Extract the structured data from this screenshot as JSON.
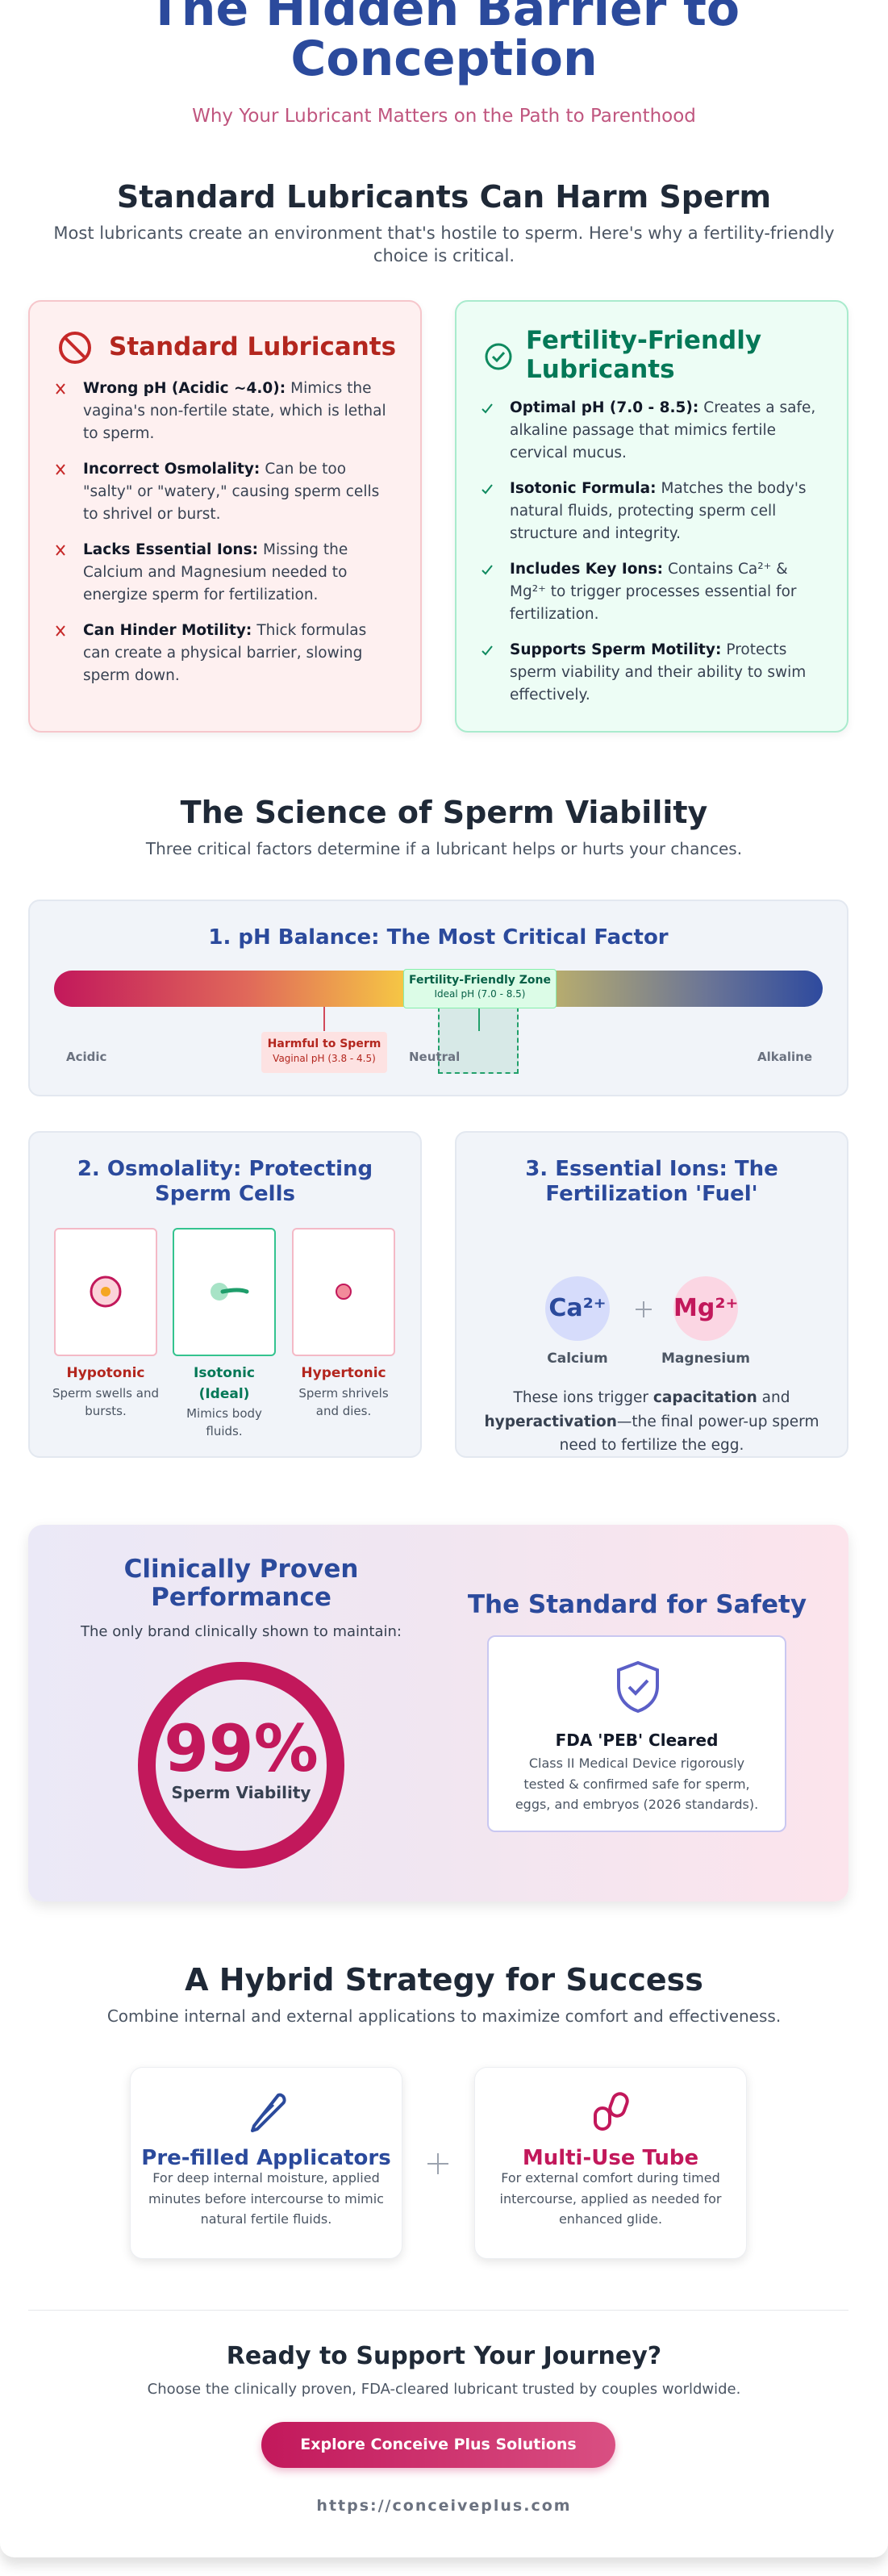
{
  "header": {
    "title": "The Hidden Barrier to Conception",
    "subtitle": "Why Your Lubricant Matters on the Path to Parenthood"
  },
  "comparison": {
    "title": "Standard Lubricants Can Harm Sperm",
    "description": "Most lubricants create an environment that's hostile to sperm. Here's why a fertility-friendly choice is critical.",
    "standard": {
      "title": "Standard Lubricants",
      "items": [
        {
          "label": "Wrong pH (Acidic ~4.0):",
          "text": "Mimics the vagina's non-fertile state, which is lethal to sperm."
        },
        {
          "label": "Incorrect Osmolality:",
          "text": "Can be too \"salty\" or \"watery,\" causing sperm cells to shrivel or burst."
        },
        {
          "label": "Lacks Essential Ions:",
          "text": "Missing the Calcium and Magnesium needed to energize sperm for fertilization."
        },
        {
          "label": "Can Hinder Motility:",
          "text": "Thick formulas can create a physical barrier, slowing sperm down."
        }
      ]
    },
    "friendly": {
      "title": "Fertility-Friendly Lubricants",
      "items": [
        {
          "label": "Optimal pH (7.0 - 8.5):",
          "text": "Creates a safe, alkaline passage that mimics fertile cervical mucus."
        },
        {
          "label": "Isotonic Formula:",
          "text": "Matches the body's natural fluids, protecting sperm cell structure and integrity."
        },
        {
          "label": "Includes Key Ions:",
          "text": "Contains Ca²⁺ & Mg²⁺ to trigger processes essential for fertilization."
        },
        {
          "label": "Supports Sperm Motility:",
          "text": "Protects sperm viability and their ability to swim effectively."
        }
      ]
    }
  },
  "science": {
    "title": "The Science of Sperm Viability",
    "subtitle": "Three critical factors determine if a lubricant helps or hurts your chances.",
    "ph": {
      "title": "1. pH Balance: The Most Critical Factor",
      "zone_label": "Fertility-Friendly Zone",
      "zone_range": "Ideal pH (7.0 - 8.5)",
      "harmful_label": "Harmful to Sperm",
      "harmful_range": "Vaginal pH (3.8 - 4.5)",
      "scale_labels": [
        "Acidic",
        "Neutral",
        "Alkaline"
      ]
    },
    "osmolality": {
      "title": "2. Osmolality: Protecting Sperm Cells",
      "cells": [
        {
          "name": "Hypotonic",
          "desc": "Sperm swells and bursts."
        },
        {
          "name": "Isotonic (Ideal)",
          "desc": "Mimics body fluids."
        },
        {
          "name": "Hypertonic",
          "desc": "Sperm shrivels and dies."
        }
      ]
    },
    "ions": {
      "title": "3. Essential Ions: The Fertilization 'Fuel'",
      "items": [
        {
          "symbol": "Ca²⁺",
          "name": "Calcium"
        },
        {
          "symbol": "Mg²⁺",
          "name": "Magnesium"
        }
      ],
      "text": [
        "These ions trigger ",
        "capacitation",
        " and ",
        "hyperactivation",
        "—the final power-up sperm need to fertilize the egg."
      ]
    }
  },
  "clinical": {
    "title": "Clinically Proven Performance",
    "subtitle": "The only brand clinically shown to maintain:",
    "stat": "99%",
    "stat_label": "Sperm Viability",
    "safety_title": "The Standard for Safety",
    "badge_title": "FDA 'PEB' Cleared",
    "badge_text": "Class II Medical Device rigorously tested & confirmed safe for sperm, eggs, and embryos (2026 standards)."
  },
  "strategy": {
    "title": "A Hybrid Strategy for Success",
    "subtitle": "Combine internal and external applications to maximize comfort and effectiveness.",
    "options": [
      {
        "title": "Pre-filled Applicators",
        "text": "For deep internal moisture, applied minutes before intercourse to mimic natural fertile fluids."
      },
      {
        "title": "Multi-Use Tube",
        "text": "For external comfort during timed intercourse, applied as needed for enhanced glide."
      }
    ]
  },
  "cta": {
    "title": "Ready to Support Your Journey?",
    "subtitle": "Choose the clinically proven, FDA-cleared lubricant trusted by couples worldwide.",
    "button": "Explore Conceive Plus Solutions",
    "url": "https://conceiveplus.com"
  }
}
